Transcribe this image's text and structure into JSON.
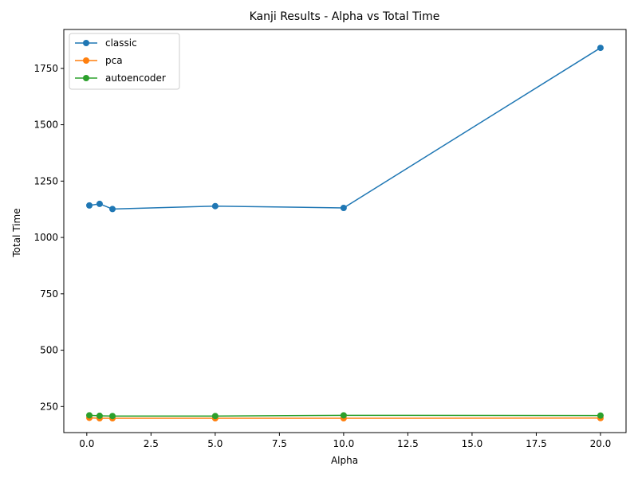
{
  "chart_data": {
    "type": "line",
    "title": "Kanji Results - Alpha vs Total Time",
    "xlabel": "Alpha",
    "ylabel": "Total Time",
    "x": [
      0.1,
      0.5,
      1,
      5,
      10,
      20
    ],
    "xlim": [
      -0.895,
      20.995
    ],
    "ylim": [
      134.5,
      1922.5
    ],
    "xticks": [
      0.0,
      2.5,
      5.0,
      7.5,
      10.0,
      12.5,
      15.0,
      17.5,
      20.0
    ],
    "xtick_labels": [
      "0.0",
      "2.5",
      "5.0",
      "7.5",
      "10.0",
      "12.5",
      "15.0",
      "17.5",
      "20.0"
    ],
    "yticks": [
      250,
      500,
      750,
      1000,
      1250,
      1500,
      1750
    ],
    "ytick_labels": [
      "250",
      "500",
      "750",
      "1000",
      "1250",
      "1500",
      "1750"
    ],
    "grid": false,
    "legend_position": "top-left",
    "series": [
      {
        "name": "classic",
        "color": "#1f77b4",
        "values": [
          1142,
          1149,
          1126,
          1139,
          1131,
          1841
        ]
      },
      {
        "name": "pca",
        "color": "#ff7f0e",
        "values": [
          200,
          198,
          198,
          198,
          198,
          199
        ]
      },
      {
        "name": "autoencoder",
        "color": "#2ca02c",
        "values": [
          211,
          209,
          208,
          208,
          211,
          210
        ]
      }
    ]
  }
}
